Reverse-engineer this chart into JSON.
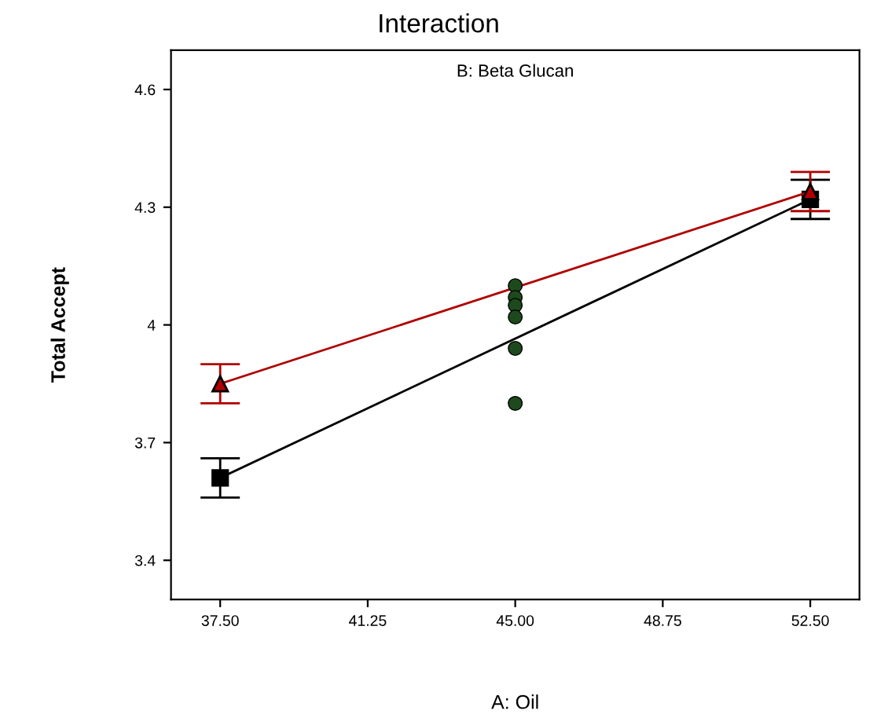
{
  "chart_data": {
    "type": "line",
    "title": "Interaction",
    "subtitle": "B: Beta Glucan",
    "xlabel": "A: Oil",
    "ylabel": "Total Accept",
    "xlim": [
      36.25,
      53.75
    ],
    "xticks": [
      {
        "value": 37.5,
        "label": "37.50"
      },
      {
        "value": 41.25,
        "label": "41.25"
      },
      {
        "value": 45,
        "label": "45.00"
      },
      {
        "value": 48.75,
        "label": "48.75"
      },
      {
        "value": 52.5,
        "label": "52.50"
      }
    ],
    "ylim": [
      3.3,
      4.7
    ],
    "yticks": [
      3.4,
      3.7,
      4,
      4.3,
      4.6
    ],
    "grid": false,
    "series": [
      {
        "color": "#000000",
        "marker": "square",
        "x": [
          37.5,
          52.5
        ],
        "values": [
          3.61,
          4.32
        ],
        "errors": [
          0.05,
          0.05
        ]
      },
      {
        "color": "#b00000",
        "marker": "triangle",
        "x": [
          37.5,
          52.5
        ],
        "values": [
          3.85,
          4.34
        ],
        "errors": [
          0.05,
          0.05
        ]
      },
      {
        "type": "scatter",
        "color": "#1d4a1d",
        "marker": "circle",
        "x": [
          45,
          45,
          45,
          45,
          45,
          45
        ],
        "values": [
          4.1,
          4.07,
          4.05,
          4.02,
          3.94,
          3.8
        ]
      }
    ]
  }
}
